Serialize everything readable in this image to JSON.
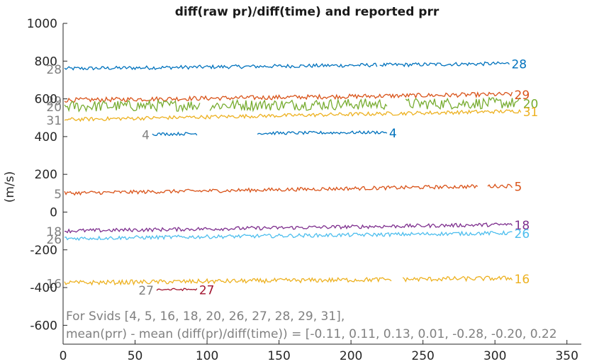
{
  "chart_data": {
    "type": "line",
    "title": "diff(raw pr)/diff(time) and reported prr",
    "xlabel": "",
    "ylabel": "(m/s)",
    "xlim": [
      0,
      360
    ],
    "ylim": [
      -700,
      1000
    ],
    "x_ticks": [
      0,
      50,
      100,
      150,
      200,
      250,
      300,
      350
    ],
    "y_ticks": [
      1000,
      800,
      600,
      400,
      200,
      0,
      -200,
      -400,
      -600
    ],
    "grid": false,
    "legend": "none",
    "annotation": [
      "For Svids [4, 5, 16, 18, 20, 26, 27, 28, 29, 31],",
      "mean(prr) - mean (diff(pr)/diff(time)) = [-0.11, 0.11, 0.13, 0.01, -0.28, -0.20, 0.22"
    ],
    "series": [
      {
        "svid": "28",
        "color": "#0072BD",
        "y_start": 760,
        "y_end": 788,
        "noise": 10,
        "segments": [
          [
            1,
            218
          ],
          [
            220,
            310
          ]
        ],
        "start_label": "28",
        "end_label": "28"
      },
      {
        "svid": "29",
        "color": "#D95319",
        "y_start": 593,
        "y_end": 625,
        "noise": 12,
        "segments": [
          [
            1,
            312
          ]
        ],
        "start_label": "29",
        "end_label": "29"
      },
      {
        "svid": "20",
        "color": "#77AC30",
        "y_start": 560,
        "y_end": 578,
        "noise": 30,
        "segments": [
          [
            1,
            95
          ],
          [
            102,
            225
          ],
          [
            238,
            318
          ]
        ],
        "start_label": "20",
        "end_label": "20"
      },
      {
        "svid": "31",
        "color": "#EDB120",
        "y_start": 490,
        "y_end": 535,
        "noise": 10,
        "segments": [
          [
            1,
            318
          ]
        ],
        "start_label": "31",
        "end_label": "31"
      },
      {
        "svid": "4",
        "color": "#0072BD",
        "y_start": 410,
        "y_end": 428,
        "noise": 8,
        "segments": [
          [
            62,
            93
          ],
          [
            135,
            225
          ]
        ],
        "start_label": "4",
        "end_label": "4"
      },
      {
        "svid": "5",
        "color": "#D95319",
        "y_start": 100,
        "y_end": 140,
        "noise": 10,
        "segments": [
          [
            1,
            288
          ],
          [
            295,
            312
          ]
        ],
        "start_label": "5",
        "end_label": "5"
      },
      {
        "svid": "18",
        "color": "#7E2F8E",
        "y_start": -100,
        "y_end": -65,
        "noise": 10,
        "segments": [
          [
            1,
            312
          ]
        ],
        "start_label": "18",
        "end_label": "18"
      },
      {
        "svid": "26",
        "color": "#4DBEEE",
        "y_start": -140,
        "y_end": -110,
        "noise": 10,
        "segments": [
          [
            1,
            312
          ]
        ],
        "start_label": "26",
        "end_label": "26"
      },
      {
        "svid": "16",
        "color": "#EDB120",
        "y_start": -375,
        "y_end": -350,
        "noise": 12,
        "segments": [
          [
            1,
            228
          ],
          [
            236,
            312
          ]
        ],
        "start_label": "16",
        "end_label": "16"
      },
      {
        "svid": "27",
        "color": "#A2142F",
        "y_start": -412,
        "y_end": -405,
        "noise": 6,
        "segments": [
          [
            65,
            93
          ]
        ],
        "start_label": "27",
        "end_label": "27"
      }
    ]
  }
}
